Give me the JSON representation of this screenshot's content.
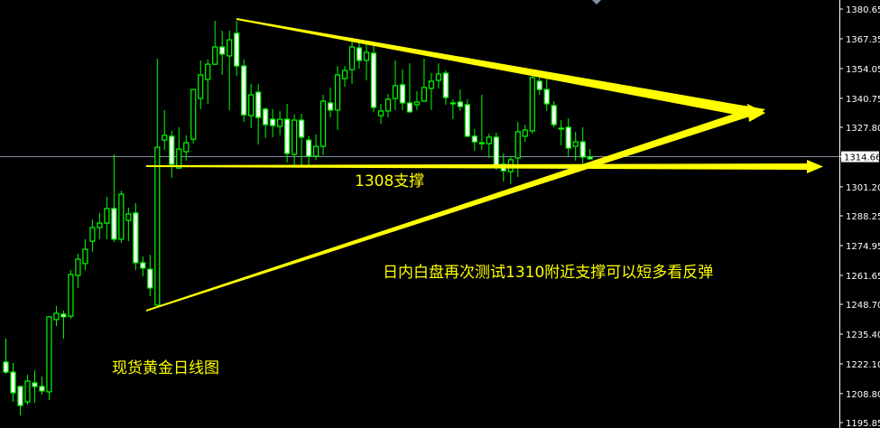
{
  "chart_data": {
    "type": "candlestick",
    "title": "现货黄金日线图",
    "ylim": [
      1195.85,
      1380.65
    ],
    "y_ticks": [
      "1380.65",
      "1367.35",
      "1354.05",
      "1340.75",
      "1327.80",
      "1314.66",
      "1301.20",
      "1288.25",
      "1274.95",
      "1261.65",
      "1248.70",
      "1235.40",
      "1222.10",
      "1208.80",
      "1195.85"
    ],
    "current_price": "1314.66",
    "grid": false,
    "colors": {
      "background": "#000000",
      "candle_outline": "#00ff00",
      "bear_fill": "#ffffff",
      "bull_fill": "#000000",
      "annotation": "#ffff00",
      "price_line": "#8090a0",
      "axis_text": "#ffffff"
    },
    "candles_ohlc": [
      [
        1222.9,
        1233.4,
        1217.6,
        1218.4
      ],
      [
        1218.4,
        1222.5,
        1205.1,
        1209.2
      ],
      [
        1212.0,
        1212.4,
        1199.1,
        1203.5
      ],
      [
        1205.1,
        1217.2,
        1203.9,
        1214.4
      ],
      [
        1213.6,
        1219.3,
        1204.7,
        1212.0
      ],
      [
        1212.0,
        1216.4,
        1208.4,
        1210.0
      ],
      [
        1209.6,
        1243.4,
        1205.9,
        1243.1
      ],
      [
        1241.9,
        1247.9,
        1239.0,
        1244.7
      ],
      [
        1244.3,
        1245.9,
        1233.4,
        1243.1
      ],
      [
        1243.4,
        1264.0,
        1242.3,
        1262.0
      ],
      [
        1261.6,
        1271.3,
        1256.0,
        1268.9
      ],
      [
        1266.9,
        1277.8,
        1264.0,
        1273.3
      ],
      [
        1276.9,
        1286.6,
        1272.1,
        1283.0
      ],
      [
        1283.0,
        1289.5,
        1277.8,
        1285.0
      ],
      [
        1285.0,
        1296.7,
        1277.8,
        1291.5
      ],
      [
        1291.5,
        1315.7,
        1276.5,
        1277.8
      ],
      [
        1277.8,
        1299.5,
        1276.1,
        1297.9
      ],
      [
        1286.2,
        1291.9,
        1276.9,
        1289.1
      ],
      [
        1289.5,
        1293.9,
        1264.0,
        1267.3
      ],
      [
        1267.3,
        1270.1,
        1261.2,
        1264.9
      ],
      [
        1264.4,
        1270.9,
        1252.3,
        1256.0
      ],
      [
        1248.3,
        1358.5,
        1248.3,
        1318.9
      ],
      [
        1322.1,
        1335.5,
        1317.7,
        1324.2
      ],
      [
        1323.8,
        1326.2,
        1305.2,
        1311.3
      ],
      [
        1309.6,
        1327.8,
        1309.2,
        1318.1
      ],
      [
        1316.9,
        1324.2,
        1312.9,
        1320.9
      ],
      [
        1322.5,
        1344.9,
        1320.5,
        1344.7
      ],
      [
        1340.7,
        1357.7,
        1335.9,
        1351.2
      ],
      [
        1349.2,
        1358.1,
        1338.3,
        1356.0
      ],
      [
        1356.0,
        1375.4,
        1355.6,
        1363.7
      ],
      [
        1363.7,
        1371.0,
        1351.2,
        1360.5
      ],
      [
        1359.7,
        1371.0,
        1335.5,
        1366.9
      ],
      [
        1369.8,
        1375.4,
        1350.8,
        1355.2
      ],
      [
        1355.2,
        1358.1,
        1330.2,
        1333.4
      ],
      [
        1333.0,
        1347.2,
        1327.4,
        1342.3
      ],
      [
        1343.5,
        1347.2,
        1320.1,
        1332.2
      ],
      [
        1335.9,
        1336.7,
        1323.0,
        1329.0
      ],
      [
        1331.4,
        1335.9,
        1323.4,
        1328.6
      ],
      [
        1328.2,
        1335.1,
        1324.2,
        1331.4
      ],
      [
        1331.4,
        1338.3,
        1312.1,
        1316.1
      ],
      [
        1315.7,
        1333.4,
        1310.9,
        1331.0
      ],
      [
        1331.0,
        1333.8,
        1310.9,
        1323.4
      ],
      [
        1322.1,
        1323.8,
        1310.9,
        1314.9
      ],
      [
        1314.9,
        1324.6,
        1313.3,
        1319.3
      ],
      [
        1319.3,
        1342.3,
        1315.3,
        1339.5
      ],
      [
        1338.7,
        1345.6,
        1332.2,
        1335.5
      ],
      [
        1335.5,
        1355.2,
        1326.6,
        1351.2
      ],
      [
        1349.6,
        1355.2,
        1345.9,
        1353.2
      ],
      [
        1353.6,
        1366.1,
        1347.2,
        1363.7
      ],
      [
        1363.3,
        1365.7,
        1354.0,
        1357.7
      ],
      [
        1357.7,
        1364.9,
        1348.8,
        1361.3
      ],
      [
        1360.9,
        1364.5,
        1334.7,
        1336.7
      ],
      [
        1333.0,
        1338.3,
        1329.4,
        1335.1
      ],
      [
        1335.1,
        1342.7,
        1332.2,
        1340.3
      ],
      [
        1340.7,
        1357.7,
        1335.5,
        1346.4
      ],
      [
        1346.8,
        1353.6,
        1335.5,
        1338.7
      ],
      [
        1338.7,
        1356.4,
        1334.3,
        1334.7
      ],
      [
        1337.9,
        1343.9,
        1335.5,
        1339.1
      ],
      [
        1339.5,
        1358.5,
        1339.1,
        1345.6
      ],
      [
        1345.2,
        1352.0,
        1335.5,
        1348.4
      ],
      [
        1348.8,
        1356.4,
        1345.2,
        1351.6
      ],
      [
        1352.0,
        1353.2,
        1337.9,
        1341.1
      ],
      [
        1338.7,
        1340.3,
        1331.4,
        1338.5
      ],
      [
        1339.1,
        1344.7,
        1335.1,
        1337.1
      ],
      [
        1337.9,
        1340.3,
        1323.4,
        1323.8
      ],
      [
        1323.8,
        1327.0,
        1317.3,
        1321.3
      ],
      [
        1320.9,
        1342.3,
        1317.7,
        1320.7
      ],
      [
        1320.5,
        1325.0,
        1314.1,
        1323.4
      ],
      [
        1323.4,
        1325.4,
        1308.8,
        1310.9
      ],
      [
        1311.3,
        1316.1,
        1303.6,
        1308.4
      ],
      [
        1308.0,
        1314.9,
        1302.4,
        1313.3
      ],
      [
        1314.1,
        1330.2,
        1305.6,
        1325.8
      ],
      [
        1323.8,
        1329.0,
        1321.3,
        1326.6
      ],
      [
        1326.2,
        1351.6,
        1325.0,
        1350.0
      ],
      [
        1348.4,
        1351.2,
        1342.3,
        1344.7
      ],
      [
        1344.7,
        1349.6,
        1335.1,
        1338.3
      ],
      [
        1337.5,
        1339.5,
        1327.8,
        1329.0
      ],
      [
        1327.4,
        1331.0,
        1319.7,
        1327.0
      ],
      [
        1327.8,
        1331.8,
        1314.9,
        1318.5
      ],
      [
        1319.3,
        1325.8,
        1312.9,
        1321.3
      ],
      [
        1321.3,
        1327.8,
        1311.3,
        1314.5
      ],
      [
        1314.5,
        1318.1,
        1313.3,
        1313.7
      ]
    ],
    "annotations": {
      "support_label": "1308支撑",
      "note": "日内白盘再次测试1310附近支撑可以短多看反弹",
      "chart_label": "现货黄金日线图"
    }
  }
}
